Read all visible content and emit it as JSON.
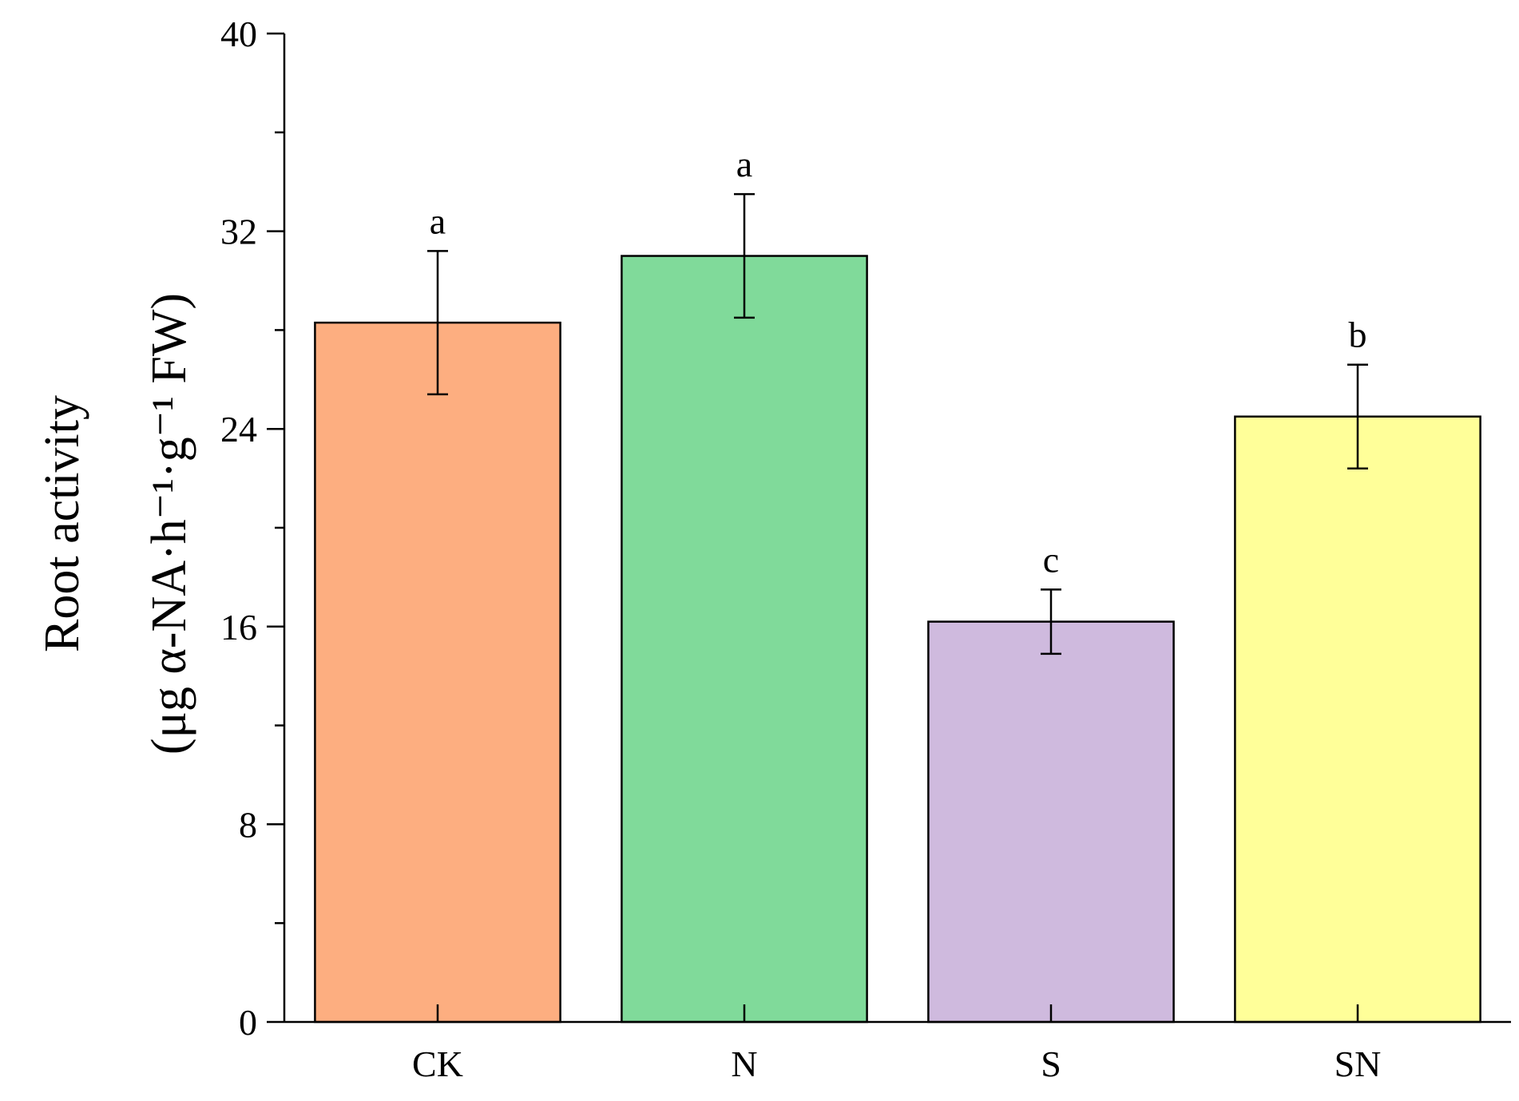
{
  "chart_data": {
    "type": "bar",
    "categories": [
      "CK",
      "N",
      "S",
      "SN"
    ],
    "values": [
      28.3,
      31.0,
      16.2,
      24.5
    ],
    "errors": [
      2.9,
      2.5,
      1.3,
      2.1
    ],
    "significance_letters": [
      "a",
      "a",
      "c",
      "b"
    ],
    "colors": [
      "#FDAE80",
      "#80DA9A",
      "#CFBADE",
      "#FFFF99"
    ],
    "xlabel": "",
    "ylabel_line1": "Root activity",
    "ylabel_line2": "(μg α-NA·h⁻¹·g⁻¹ FW)",
    "ylim": [
      0,
      40
    ],
    "yticks_major": [
      0,
      8,
      16,
      24,
      32,
      40
    ],
    "yticks_minor": [
      4,
      12,
      20,
      28,
      36
    ],
    "grid": false,
    "legend": "none"
  }
}
